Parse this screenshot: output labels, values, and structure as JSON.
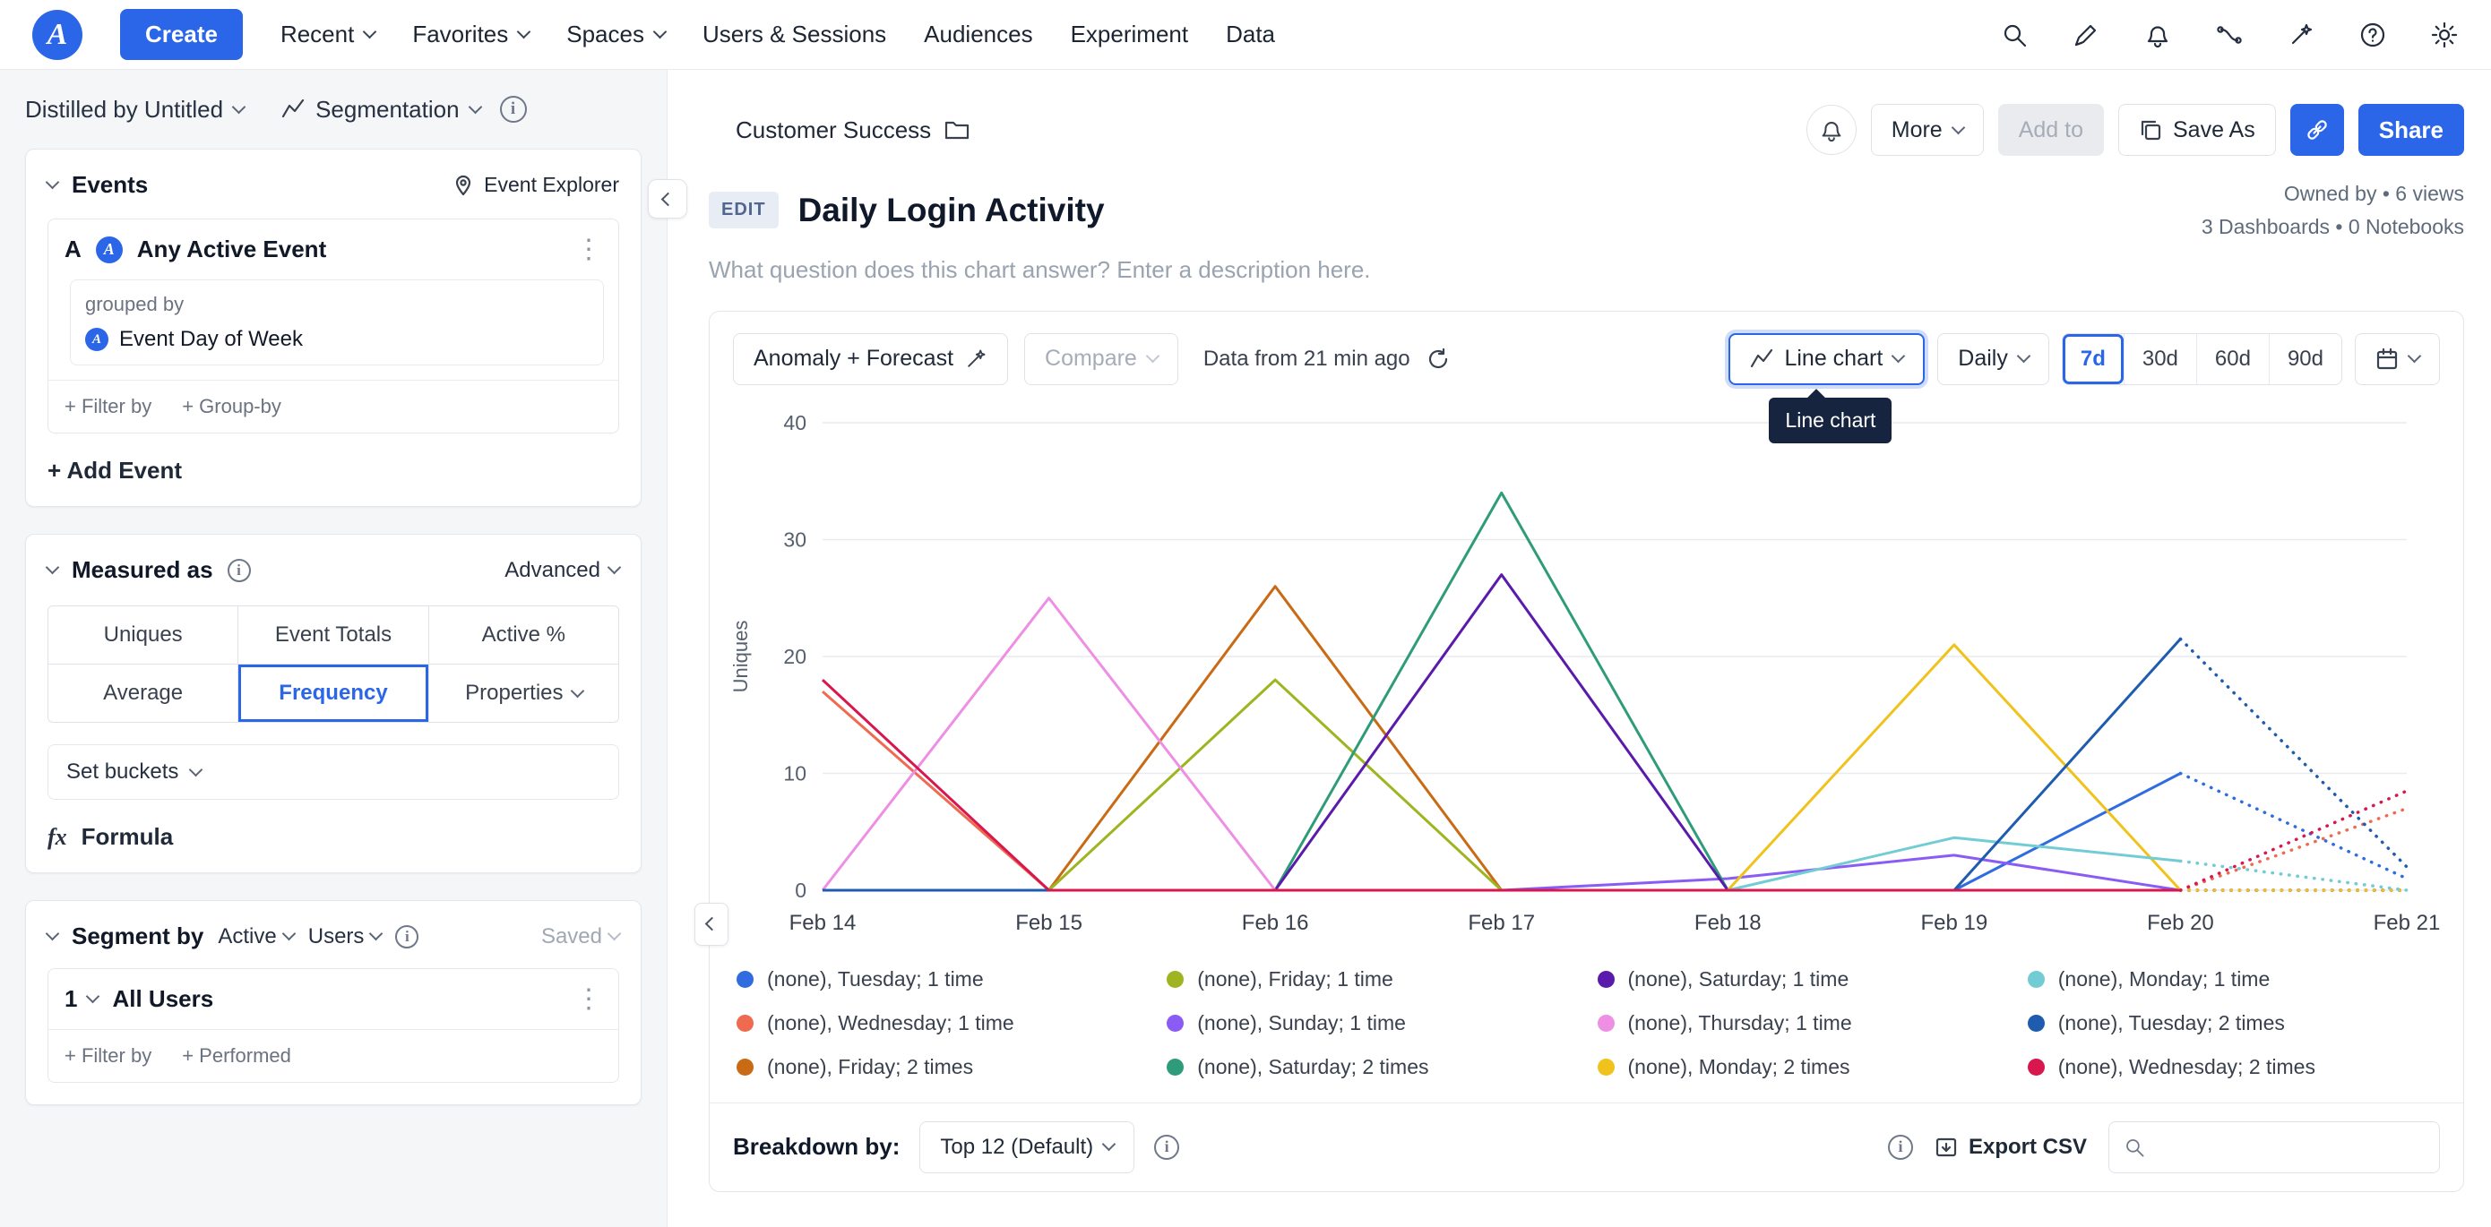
{
  "colors": {
    "accent": "#2b66e8"
  },
  "nav": {
    "create": "Create",
    "recent": "Recent",
    "favorites": "Favorites",
    "spaces": "Spaces",
    "users_sessions": "Users & Sessions",
    "audiences": "Audiences",
    "experiment": "Experiment",
    "data": "Data"
  },
  "sidebar": {
    "project": "Distilled by Untitled",
    "view_type": "Segmentation",
    "events": {
      "title": "Events",
      "explorer": "Event Explorer",
      "row_letter": "A",
      "event_name": "Any Active Event",
      "grouped_by_label": "grouped by",
      "grouped_by_value": "Event Day of Week",
      "filter_by": "+ Filter by",
      "group_by": "+ Group-by",
      "add_event": "+ Add Event"
    },
    "measured": {
      "title": "Measured as",
      "advanced": "Advanced",
      "tabs": [
        "Uniques",
        "Event Totals",
        "Active %",
        "Average",
        "Frequency",
        "Properties"
      ],
      "selected_tab": "Frequency",
      "set_buckets": "Set buckets",
      "formula_fx": "fx",
      "formula": "Formula"
    },
    "segment": {
      "title": "Segment by",
      "active": "Active",
      "users": "Users",
      "saved": "Saved",
      "index": "1",
      "segment_name": "All Users",
      "filter_by": "+ Filter by",
      "performed": "+ Performed"
    }
  },
  "header": {
    "breadcrumb": "Customer Success",
    "more": "More",
    "add_to": "Add to",
    "save_as": "Save As",
    "share": "Share",
    "edit_badge": "EDIT",
    "title": "Daily Login Activity",
    "meta1": "Owned by  • 6 views",
    "meta2": "3 Dashboards • 0 Notebooks",
    "description_placeholder": "What question does this chart answer? Enter a description here."
  },
  "toolbar": {
    "anomaly": "Anomaly + Forecast",
    "compare": "Compare",
    "data_from": "Data from 21 min ago",
    "chart_type": "Line chart",
    "tooltip": "Line chart",
    "granularity": "Daily",
    "ranges": [
      "7d",
      "30d",
      "60d",
      "90d"
    ],
    "selected_range": "7d"
  },
  "breakdown": {
    "label": "Breakdown by:",
    "top": "Top 12 (Default)",
    "export_csv": "Export CSV",
    "search_placeholder": ""
  },
  "chart_data": {
    "type": "line",
    "x": [
      "Feb 14",
      "Feb 15",
      "Feb 16",
      "Feb 17",
      "Feb 18",
      "Feb 19",
      "Feb 20",
      "Feb 21"
    ],
    "ylabel": "Uniques",
    "ylim": [
      0,
      40
    ],
    "yticks": [
      0,
      10,
      20,
      30,
      40
    ],
    "grid": true,
    "legend_position": "bottom",
    "forecast_start_index": 6,
    "series": [
      {
        "name": "(none), Tuesday; 1 time",
        "color": "#2e6cdf",
        "values": [
          0,
          0,
          0,
          0,
          0,
          0,
          10,
          1
        ]
      },
      {
        "name": "(none), Wednesday; 1 time",
        "color": "#ef6a50",
        "values": [
          17,
          0,
          0,
          0,
          0,
          0,
          0,
          7
        ]
      },
      {
        "name": "(none), Friday; 2 times",
        "color": "#c96a14",
        "values": [
          0,
          0,
          26,
          0,
          0,
          0,
          0,
          0
        ]
      },
      {
        "name": "(none), Friday; 1 time",
        "color": "#9eb521",
        "values": [
          0,
          0,
          18,
          0,
          0,
          0,
          0,
          0
        ]
      },
      {
        "name": "(none), Sunday; 1 time",
        "color": "#8a5cf5",
        "values": [
          0,
          0,
          0,
          0,
          1,
          3,
          0,
          0
        ]
      },
      {
        "name": "(none), Saturday; 2 times",
        "color": "#2f9c79",
        "values": [
          0,
          0,
          0,
          34,
          0,
          0,
          0,
          0
        ]
      },
      {
        "name": "(none), Saturday; 1 time",
        "color": "#5a1aab",
        "values": [
          0,
          0,
          0,
          27,
          0,
          0,
          0,
          0
        ]
      },
      {
        "name": "(none), Thursday; 1 time",
        "color": "#ee8fe4",
        "values": [
          0,
          25,
          0,
          0,
          0,
          0,
          0,
          0
        ]
      },
      {
        "name": "(none), Monday; 2 times",
        "color": "#efc31c",
        "values": [
          0,
          0,
          0,
          0,
          0,
          21,
          0,
          0
        ]
      },
      {
        "name": "(none), Monday; 1 time",
        "color": "#72ccd4",
        "values": [
          0,
          0,
          0,
          0,
          0,
          4.5,
          2.5,
          0
        ]
      },
      {
        "name": "(none), Tuesday; 2 times",
        "color": "#1f5cb0",
        "values": [
          0,
          0,
          0,
          0,
          0,
          0,
          21.5,
          2
        ]
      },
      {
        "name": "(none), Wednesday; 2 times",
        "color": "#d8174e",
        "values": [
          18,
          0,
          0,
          0,
          0,
          0,
          0,
          8.5
        ]
      }
    ]
  },
  "legend": {
    "items": [
      {
        "label": "(none), Tuesday; 1 time",
        "color": "#2e6cdf"
      },
      {
        "label": "(none), Wednesday; 1 time",
        "color": "#ef6a50"
      },
      {
        "label": "(none), Friday; 2 times",
        "color": "#c96a14"
      },
      {
        "label": "(none), Friday; 1 time",
        "color": "#9eb521"
      },
      {
        "label": "(none), Sunday; 1 time",
        "color": "#8a5cf5"
      },
      {
        "label": "(none), Saturday; 2 times",
        "color": "#2f9c79"
      },
      {
        "label": "(none), Saturday; 1 time",
        "color": "#5a1aab"
      },
      {
        "label": "(none), Thursday; 1 time",
        "color": "#ee8fe4"
      },
      {
        "label": "(none), Monday; 2 times",
        "color": "#efc31c"
      },
      {
        "label": "(none), Monday; 1 time",
        "color": "#72ccd4"
      },
      {
        "label": "(none), Tuesday; 2 times",
        "color": "#1f5cb0"
      },
      {
        "label": "(none), Wednesday; 2 times",
        "color": "#d8174e"
      }
    ]
  }
}
